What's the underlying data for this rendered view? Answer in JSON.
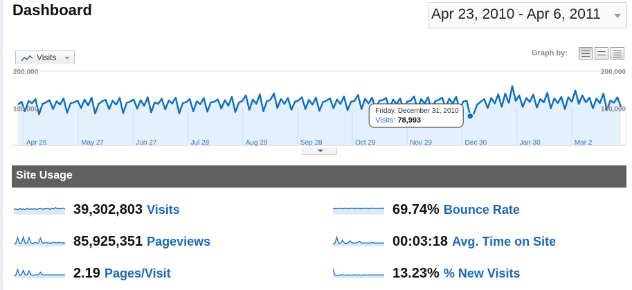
{
  "page": {
    "title": "Dashboard"
  },
  "date_range": {
    "value": "Apr 23, 2010 - Apr 6, 2011"
  },
  "graph": {
    "metric_tab": "Visits",
    "graph_by_label": "Graph by:",
    "graph_by_options": [
      "day-view-icon",
      "week-view-icon",
      "month-view-icon"
    ],
    "y_labels": {
      "top": "200,000",
      "mid": "100,000"
    },
    "x_labels": [
      "Apr 26",
      "May 27",
      "Jun 27",
      "Jul 28",
      "Aug 28",
      "Sep 28",
      "Oct 29",
      "Nov 29",
      "Dec 30",
      "Jan 30",
      "Mar 2"
    ],
    "tooltip": {
      "date": "Friday, December 31, 2010",
      "metric": "Visits:",
      "value": "78,993"
    },
    "line_color": "#0b6dbf",
    "fill_color": "#e4f0fb"
  },
  "site_usage": {
    "title": "Site Usage",
    "metrics": [
      {
        "value": "39,302,803",
        "label": "Visits"
      },
      {
        "value": "69.74%",
        "label": "Bounce Rate"
      },
      {
        "value": "85,925,351",
        "label": "Pageviews"
      },
      {
        "value": "00:03:18",
        "label": "Avg. Time on Site"
      },
      {
        "value": "2.19",
        "label": "Pages/Visit"
      },
      {
        "value": "13.23%",
        "label": "% New Visits"
      }
    ]
  },
  "chart_data": {
    "type": "area",
    "series": [
      {
        "name": "Visits",
        "values": [
          110000,
          118000,
          92000,
          120000,
          114000,
          125000,
          84000,
          112000,
          116000,
          122000,
          98000,
          119000,
          110000,
          127000,
          88000,
          114000,
          116000,
          121000,
          101000,
          124000,
          108000,
          129000,
          86000,
          112000,
          119000,
          123000,
          98000,
          121000,
          110000,
          128000,
          87000,
          115000,
          118000,
          124000,
          99000,
          122000,
          107000,
          130000,
          89000,
          116000,
          112000,
          126000,
          97000,
          121000,
          113000,
          129000,
          86000,
          114000,
          117000,
          125000,
          92000,
          119000,
          111000,
          128000,
          91000,
          116000,
          118000,
          124000,
          99000,
          122000,
          107000,
          131000,
          90000,
          115000,
          120000,
          135000,
          96000,
          124000,
          112000,
          138000,
          92000,
          119000,
          123000,
          140000,
          101000,
          125000,
          112000,
          128000,
          96000,
          118000,
          121000,
          130000,
          98000,
          123000,
          110000,
          129000,
          93000,
          117000,
          121000,
          127000,
          100000,
          124000,
          112000,
          132000,
          95000,
          118000,
          120000,
          136000,
          98000,
          126000,
          113000,
          129000,
          97000,
          120000,
          122000,
          128000,
          99000,
          124000,
          112000,
          127000,
          96000,
          118000,
          121000,
          132000,
          99000,
          125000,
          113000,
          130000,
          95000,
          119000,
          123000,
          129000,
          102000,
          126000,
          113000,
          131000,
          97000,
          118000,
          121000,
          79000,
          85000,
          110000,
          118000,
          125000,
          101000,
          128000,
          113000,
          138000,
          104000,
          140000,
          115000,
          160000,
          120000,
          135000,
          104000,
          128000,
          117000,
          137000,
          102000,
          125000,
          116000,
          142000,
          100000,
          127000,
          114000,
          131000,
          98000,
          130000,
          118000,
          148000,
          112000,
          135000,
          116000,
          129000,
          100000,
          126000,
          114000,
          140000,
          96000,
          121000,
          115000,
          130000,
          104000
        ],
        "highlight": {
          "date": "Friday, December 31, 2010",
          "value": 78993
        }
      }
    ],
    "x_ticks": [
      "Apr 26",
      "May 27",
      "Jun 27",
      "Jul 28",
      "Aug 28",
      "Sep 28",
      "Oct 29",
      "Nov 29",
      "Dec 30",
      "Jan 30",
      "Mar 2"
    ],
    "y_ticks": [
      "200,000",
      "100,000"
    ],
    "ylim": [
      0,
      200000
    ],
    "grid": true
  }
}
